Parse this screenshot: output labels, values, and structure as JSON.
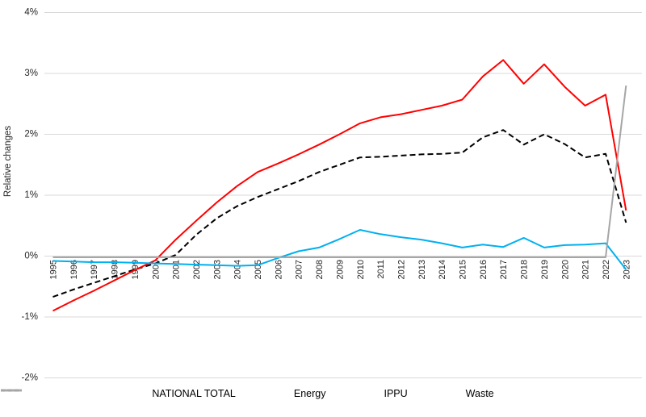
{
  "chart_data": {
    "type": "line",
    "title": "",
    "ylabel": "Relative changes",
    "xlabel": "",
    "ylim": [
      -2,
      4
    ],
    "grid": "horizontal",
    "legend_position": "bottom",
    "gridline_color": "#D9D9D9",
    "background_color": "#FFFFFF",
    "y_ticks": [
      {
        "value": 4,
        "label": "4%"
      },
      {
        "value": 3,
        "label": "3%"
      },
      {
        "value": 2,
        "label": "2%"
      },
      {
        "value": 1,
        "label": "1%"
      },
      {
        "value": 0,
        "label": "0%"
      },
      {
        "value": -1,
        "label": "-1%"
      },
      {
        "value": -2,
        "label": "-2%"
      }
    ],
    "x_categories": [
      "1995",
      "1996",
      "1997",
      "1998",
      "1999",
      "2000",
      "2001",
      "2002",
      "2003",
      "2004",
      "2005",
      "2006",
      "2007",
      "2008",
      "2009",
      "2010",
      "2011",
      "2012",
      "2013",
      "2014",
      "2015",
      "2016",
      "2017",
      "2018",
      "2019",
      "2020",
      "2021",
      "2022",
      "2023"
    ],
    "series": [
      {
        "name": "NATIONAL TOTAL",
        "color": "#000000",
        "style": "dashed",
        "values": [
          -0.67,
          -0.55,
          -0.44,
          -0.33,
          -0.22,
          -0.12,
          0.02,
          0.35,
          0.62,
          0.82,
          0.97,
          1.1,
          1.23,
          1.38,
          1.5,
          1.62,
          1.63,
          1.65,
          1.67,
          1.68,
          1.7,
          1.95,
          2.07,
          1.83,
          2.0,
          1.84,
          1.62,
          1.68,
          0.55
        ]
      },
      {
        "name": "Energy",
        "color": "#FF0000",
        "style": "solid",
        "values": [
          -0.9,
          -0.73,
          -0.57,
          -0.4,
          -0.23,
          -0.07,
          0.27,
          0.58,
          0.88,
          1.15,
          1.38,
          1.52,
          1.67,
          1.83,
          2.0,
          2.18,
          2.28,
          2.33,
          2.4,
          2.47,
          2.57,
          2.95,
          3.22,
          2.83,
          3.15,
          2.78,
          2.47,
          2.65,
          0.75
        ]
      },
      {
        "name": "IPPU",
        "color": "#00B0F0",
        "style": "solid",
        "values": [
          -0.08,
          -0.09,
          -0.1,
          -0.1,
          -0.11,
          -0.12,
          -0.13,
          -0.14,
          -0.15,
          -0.16,
          -0.15,
          -0.03,
          0.08,
          0.14,
          0.28,
          0.43,
          0.36,
          0.31,
          0.27,
          0.21,
          0.14,
          0.19,
          0.15,
          0.3,
          0.14,
          0.18,
          0.19,
          0.21,
          -0.22
        ]
      },
      {
        "name": "Waste",
        "color": "#A6A6A6",
        "style": "solid",
        "values": [
          -0.02,
          -0.02,
          -0.02,
          -0.02,
          -0.02,
          -0.02,
          -0.02,
          -0.02,
          -0.02,
          -0.02,
          -0.02,
          -0.02,
          -0.02,
          -0.02,
          -0.02,
          -0.02,
          -0.02,
          -0.02,
          -0.02,
          -0.02,
          -0.02,
          -0.02,
          -0.02,
          -0.02,
          -0.02,
          -0.02,
          -0.02,
          -0.02,
          2.8
        ]
      }
    ]
  }
}
